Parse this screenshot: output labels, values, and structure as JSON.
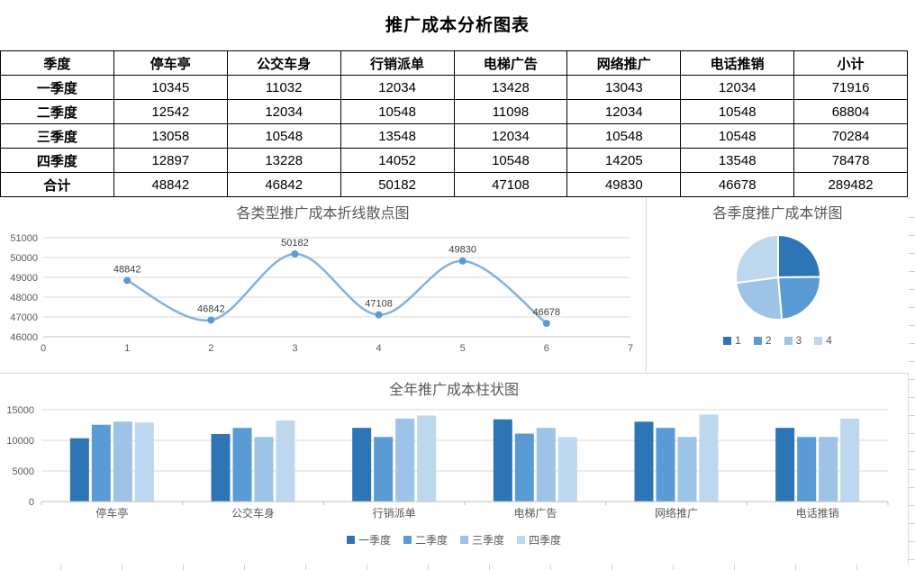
{
  "title": "推广成本分析图表",
  "table": {
    "headers": [
      "季度",
      "停车亭",
      "公交车身",
      "行销派单",
      "电梯广告",
      "网络推广",
      "电话推销",
      "小计"
    ],
    "rows": [
      [
        "一季度",
        "10345",
        "11032",
        "12034",
        "13428",
        "13043",
        "12034",
        "71916"
      ],
      [
        "二季度",
        "12542",
        "12034",
        "10548",
        "11098",
        "12034",
        "10548",
        "68804"
      ],
      [
        "三季度",
        "13058",
        "10548",
        "13548",
        "12034",
        "10548",
        "10548",
        "70284"
      ],
      [
        "四季度",
        "12897",
        "13228",
        "14052",
        "10548",
        "14205",
        "13548",
        "78478"
      ],
      [
        "合计",
        "48842",
        "46842",
        "50182",
        "47108",
        "49830",
        "46678",
        "289482"
      ]
    ]
  },
  "colors": {
    "series_palette": [
      "#2e75b6",
      "#5b9bd5",
      "#9dc3e6",
      "#bdd7ee"
    ],
    "grid": "#d9d9d9",
    "axis": "#bfbfbf",
    "axis_text": "#595959"
  },
  "chart_data": [
    {
      "type": "line",
      "title": "各类型推广成本折线散点图",
      "x": [
        1,
        2,
        3,
        4,
        5,
        6
      ],
      "values": [
        48842,
        46842,
        50182,
        47108,
        49830,
        46678
      ],
      "data_labels": [
        "48842",
        "46842",
        "50182",
        "47108",
        "49830",
        "46678"
      ],
      "xlim": [
        0,
        7
      ],
      "ylim": [
        46000,
        51000
      ],
      "ytick_step": 1000,
      "xtick_step": 1,
      "grid": true,
      "smooth": true,
      "line_color": "#86b0dd",
      "marker_color": "#5b9bd5",
      "legend_position": "none"
    },
    {
      "type": "pie",
      "title": "各季度推广成本饼图",
      "categories": [
        "1",
        "2",
        "3",
        "4"
      ],
      "values": [
        71916,
        68804,
        70284,
        78478
      ],
      "colors": [
        "#2e75b6",
        "#5b9bd5",
        "#9dc3e6",
        "#bdd7ee"
      ],
      "start_angle_deg": 0,
      "legend_position": "bottom"
    },
    {
      "type": "bar",
      "title": "全年推广成本柱状图",
      "categories": [
        "停车亭",
        "公交车身",
        "行销派单",
        "电梯广告",
        "网络推广",
        "电话推销"
      ],
      "series": [
        {
          "name": "一季度",
          "values": [
            10345,
            11032,
            12034,
            13428,
            13043,
            12034
          ],
          "color": "#2e75b6"
        },
        {
          "name": "二季度",
          "values": [
            12542,
            12034,
            10548,
            11098,
            12034,
            10548
          ],
          "color": "#5b9bd5"
        },
        {
          "name": "三季度",
          "values": [
            13058,
            10548,
            13548,
            12034,
            10548,
            10548
          ],
          "color": "#9dc3e6"
        },
        {
          "name": "四季度",
          "values": [
            12897,
            13228,
            14052,
            10548,
            14205,
            13548
          ],
          "color": "#bdd7ee"
        }
      ],
      "ylim": [
        0,
        15000
      ],
      "ytick_step": 5000,
      "grid": true,
      "legend_position": "bottom"
    }
  ]
}
